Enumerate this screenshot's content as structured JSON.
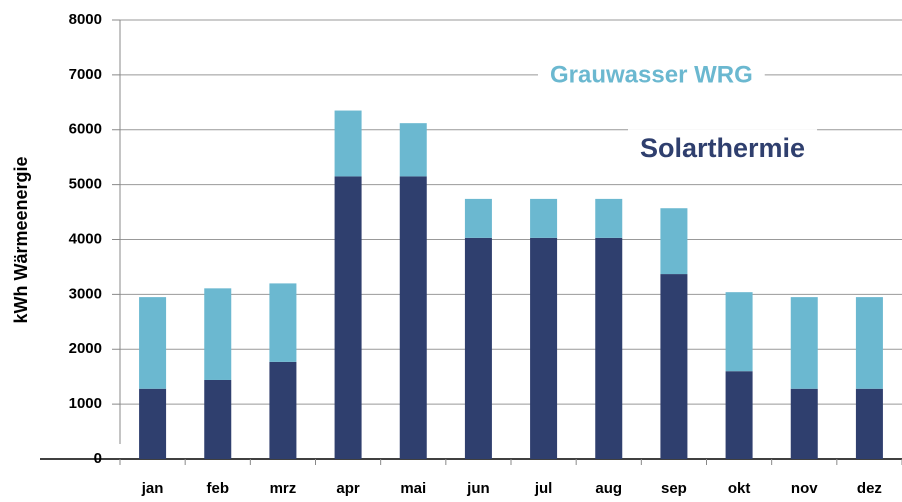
{
  "chart_data": {
    "type": "stacked-bar",
    "y_label": "kWh Wärmeenergie",
    "categories": [
      "jan",
      "feb",
      "mrz",
      "apr",
      "mai",
      "jun",
      "jul",
      "aug",
      "sep",
      "okt",
      "nov",
      "dez"
    ],
    "series": [
      {
        "name": "Solarthermie",
        "color": "#2f3f6e",
        "values": [
          1280,
          1440,
          1770,
          5150,
          5150,
          4030,
          4030,
          4030,
          3370,
          1600,
          1280,
          1280
        ]
      },
      {
        "name": "Grauwasser WRG",
        "color": "#6bb8d0",
        "values": [
          1670,
          1670,
          1430,
          1200,
          970,
          710,
          710,
          710,
          1200,
          1440,
          1670,
          1670
        ]
      }
    ],
    "ylim": [
      0,
      8000
    ],
    "yticks": [
      0,
      1000,
      2000,
      3000,
      4000,
      5000,
      6000,
      7000,
      8000
    ],
    "grid": true
  }
}
